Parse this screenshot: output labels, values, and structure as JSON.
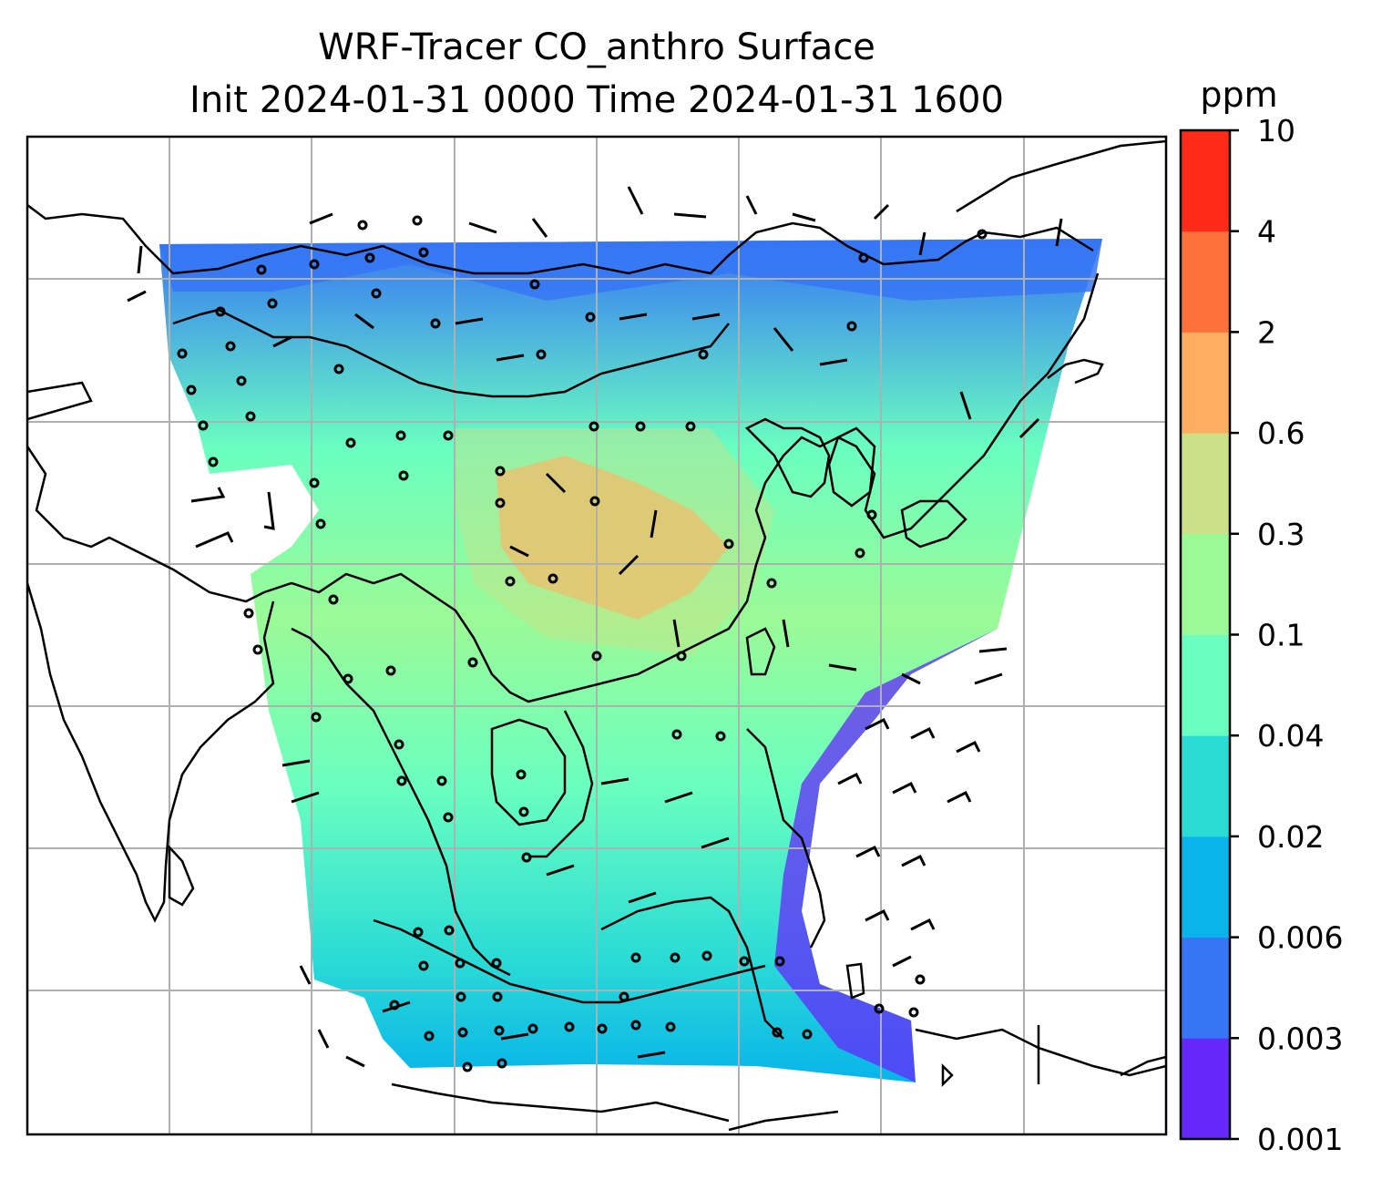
{
  "title": {
    "line1": "WRF-Tracer CO_anthro Surface",
    "line2": "Init 2024-01-31 0000 Time 2024-01-31 1600"
  },
  "colorbar": {
    "unit": "ppm",
    "levels": [
      "0.001",
      "0.003",
      "0.006",
      "0.02",
      "0.04",
      "0.1",
      "0.3",
      "0.6",
      "2",
      "4",
      "10"
    ],
    "colors": [
      "#6428fa",
      "#3676f5",
      "#08b4ea",
      "#2bdcd5",
      "#6affc0",
      "#9bfa96",
      "#cce088",
      "#ffad5e",
      "#ff713a",
      "#ff2a17"
    ]
  },
  "chart_data": {
    "type": "heatmap",
    "title": "WRF-Tracer CO_anthro Surface\nInit 2024-01-31 0000 Time 2024-01-31 1600",
    "colorbar_label": "ppm",
    "colorbar_ticks": [
      "0.001",
      "0.003",
      "0.006",
      "0.02",
      "0.04",
      "0.1",
      "0.3",
      "0.6",
      "2",
      "4",
      "10"
    ],
    "grid": true,
    "overlays": [
      "coastlines and borders",
      "wind barbs"
    ]
  }
}
